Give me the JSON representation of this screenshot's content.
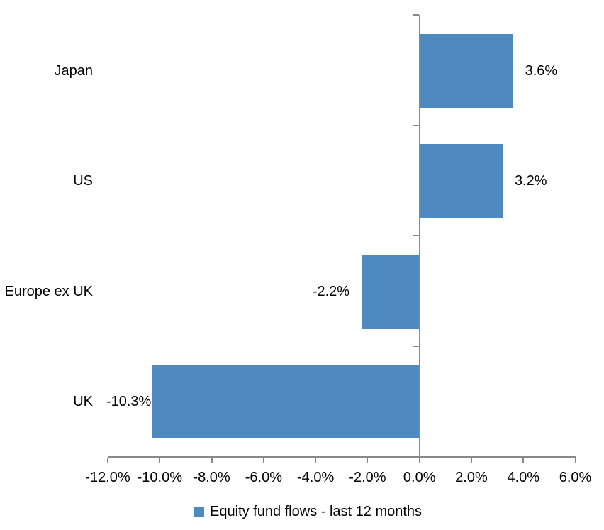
{
  "chart_data": {
    "type": "bar",
    "orientation": "horizontal",
    "title": "",
    "categories": [
      "Japan",
      "US",
      "Europe ex UK",
      "UK"
    ],
    "series": [
      {
        "name": "Equity fund flows - last 12 months",
        "values": [
          3.6,
          3.2,
          -2.2,
          -10.3
        ],
        "data_labels": [
          "3.6%",
          "3.2%",
          "-2.2%",
          "-10.3%"
        ]
      }
    ],
    "xlabel": "",
    "ylabel": "",
    "xlim": [
      -12,
      6
    ],
    "x_tick_values": [
      -12,
      -10,
      -8,
      -6,
      -4,
      -2,
      0,
      2,
      4,
      6
    ],
    "x_tick_labels": [
      "-12.0%",
      "-10.0%",
      "-8.0%",
      "-6.0%",
      "-4.0%",
      "-2.0%",
      "0.0%",
      "2.0%",
      "4.0%",
      "6.0%"
    ],
    "grid": false,
    "legend_position": "bottom",
    "legend_label": "Equity fund flows - last 12 months",
    "colors": {
      "bar": "#4E8ABF",
      "axis": "#898989",
      "text": "#000000",
      "background": "#FFFFFF"
    }
  }
}
